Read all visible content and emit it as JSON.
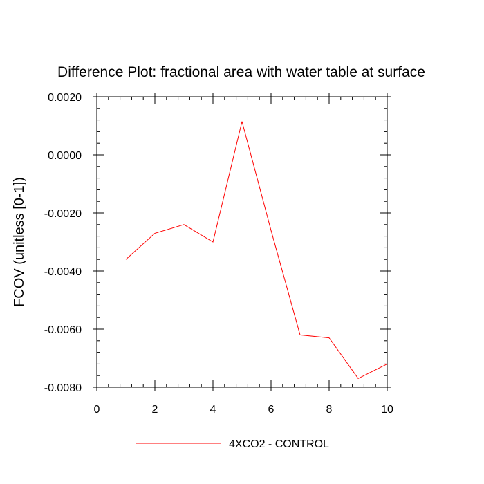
{
  "chart_data": {
    "type": "line",
    "title": "Difference Plot: fractional area with water table at surface",
    "xlabel": "",
    "ylabel": "FCOV  (unitless [0-1])",
    "xlim": [
      0,
      10
    ],
    "ylim": [
      -0.008,
      0.002
    ],
    "x_ticks": [
      0,
      2,
      4,
      6,
      8,
      10
    ],
    "x_tick_labels": [
      "0",
      "2",
      "4",
      "6",
      "8",
      "10"
    ],
    "y_ticks": [
      0.002,
      0.0,
      -0.002,
      -0.004,
      -0.006,
      -0.008
    ],
    "y_tick_labels": [
      "0.0020",
      "0.0000",
      "-0.0020",
      "-0.0040",
      "-0.0060",
      "-0.0080"
    ],
    "grid": false,
    "legend_position": "bottom-center",
    "series": [
      {
        "name": "4XCO2 - CONTROL",
        "color": "#ff0000",
        "x": [
          1,
          2,
          3,
          4,
          5,
          6,
          7,
          8,
          9,
          10
        ],
        "y": [
          -0.0036,
          -0.0027,
          -0.0024,
          -0.003,
          0.00115,
          -0.0026,
          -0.0062,
          -0.0063,
          -0.0077,
          -0.0072
        ]
      }
    ]
  }
}
